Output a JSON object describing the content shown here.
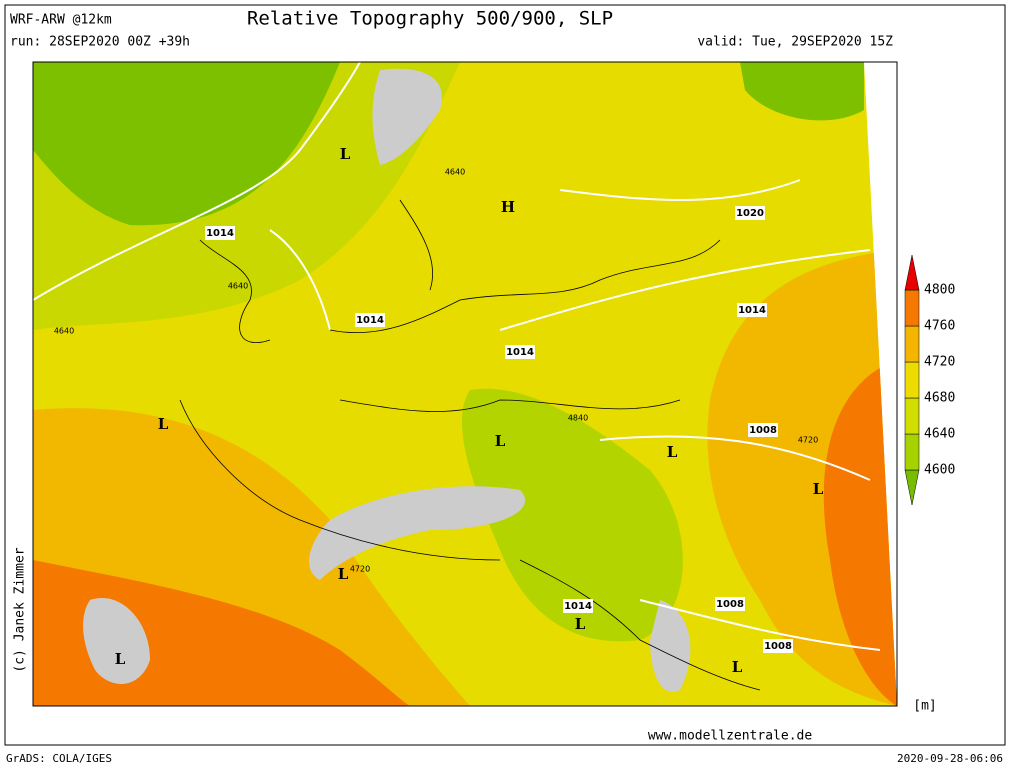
{
  "header": {
    "model": "WRF-ARW @12km",
    "title": "Relative Topography 500/900, SLP",
    "run": "run: 28SEP2020 00Z +39h",
    "valid": "valid: Tue, 29SEP2020 15Z"
  },
  "colorbar": {
    "levels": [
      4600,
      4640,
      4680,
      4720,
      4760,
      4800
    ],
    "colors": [
      "#78be00",
      "#a6d200",
      "#d2de00",
      "#eedc00",
      "#f5b400",
      "#f57800",
      "#e60000"
    ]
  },
  "map_labels": [
    "L",
    "H",
    "1014",
    "1020",
    "1014",
    "1014",
    "1014",
    "L",
    "L",
    "1008",
    "L",
    "L",
    "L",
    "1014",
    "L",
    "1008",
    "1008",
    "L",
    "L",
    "4640",
    "4640",
    "4640",
    "4840",
    "4720",
    "4720"
  ],
  "footer": {
    "copyright": "(c) Janek Zimmer",
    "unit": "[m]",
    "url": "www.modellzentrale.de",
    "software": "GrADS: COLA/IGES",
    "timestamp": "2020-09-28-06:06"
  }
}
